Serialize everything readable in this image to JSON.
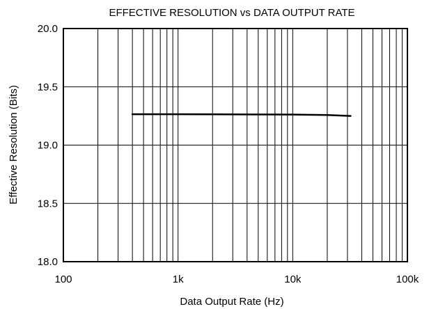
{
  "chart_data": {
    "type": "line",
    "title": "EFFECTIVE RESOLUTION vs DATA OUTPUT RATE",
    "xlabel": "Data Output Rate (Hz)",
    "ylabel": "Effective Resolution (Bits)",
    "x_scale": "log",
    "xlim": [
      100,
      100000
    ],
    "ylim": [
      18.0,
      20.0
    ],
    "grid": true,
    "x_ticks": [
      {
        "value": 100,
        "label": "100"
      },
      {
        "value": 1000,
        "label": "1k"
      },
      {
        "value": 10000,
        "label": "10k"
      },
      {
        "value": 100000,
        "label": "100k"
      }
    ],
    "y_ticks": [
      {
        "value": 18.0,
        "label": "18.0"
      },
      {
        "value": 18.5,
        "label": "18.5"
      },
      {
        "value": 19.0,
        "label": "19.0"
      },
      {
        "value": 19.5,
        "label": "19.5"
      },
      {
        "value": 20.0,
        "label": "20.0"
      }
    ],
    "series": [
      {
        "x": [
          400,
          1000,
          2000,
          5000,
          10000,
          20000,
          32000
        ],
        "y": [
          19.265,
          19.265,
          19.264,
          19.263,
          19.262,
          19.258,
          19.25
        ]
      }
    ]
  }
}
